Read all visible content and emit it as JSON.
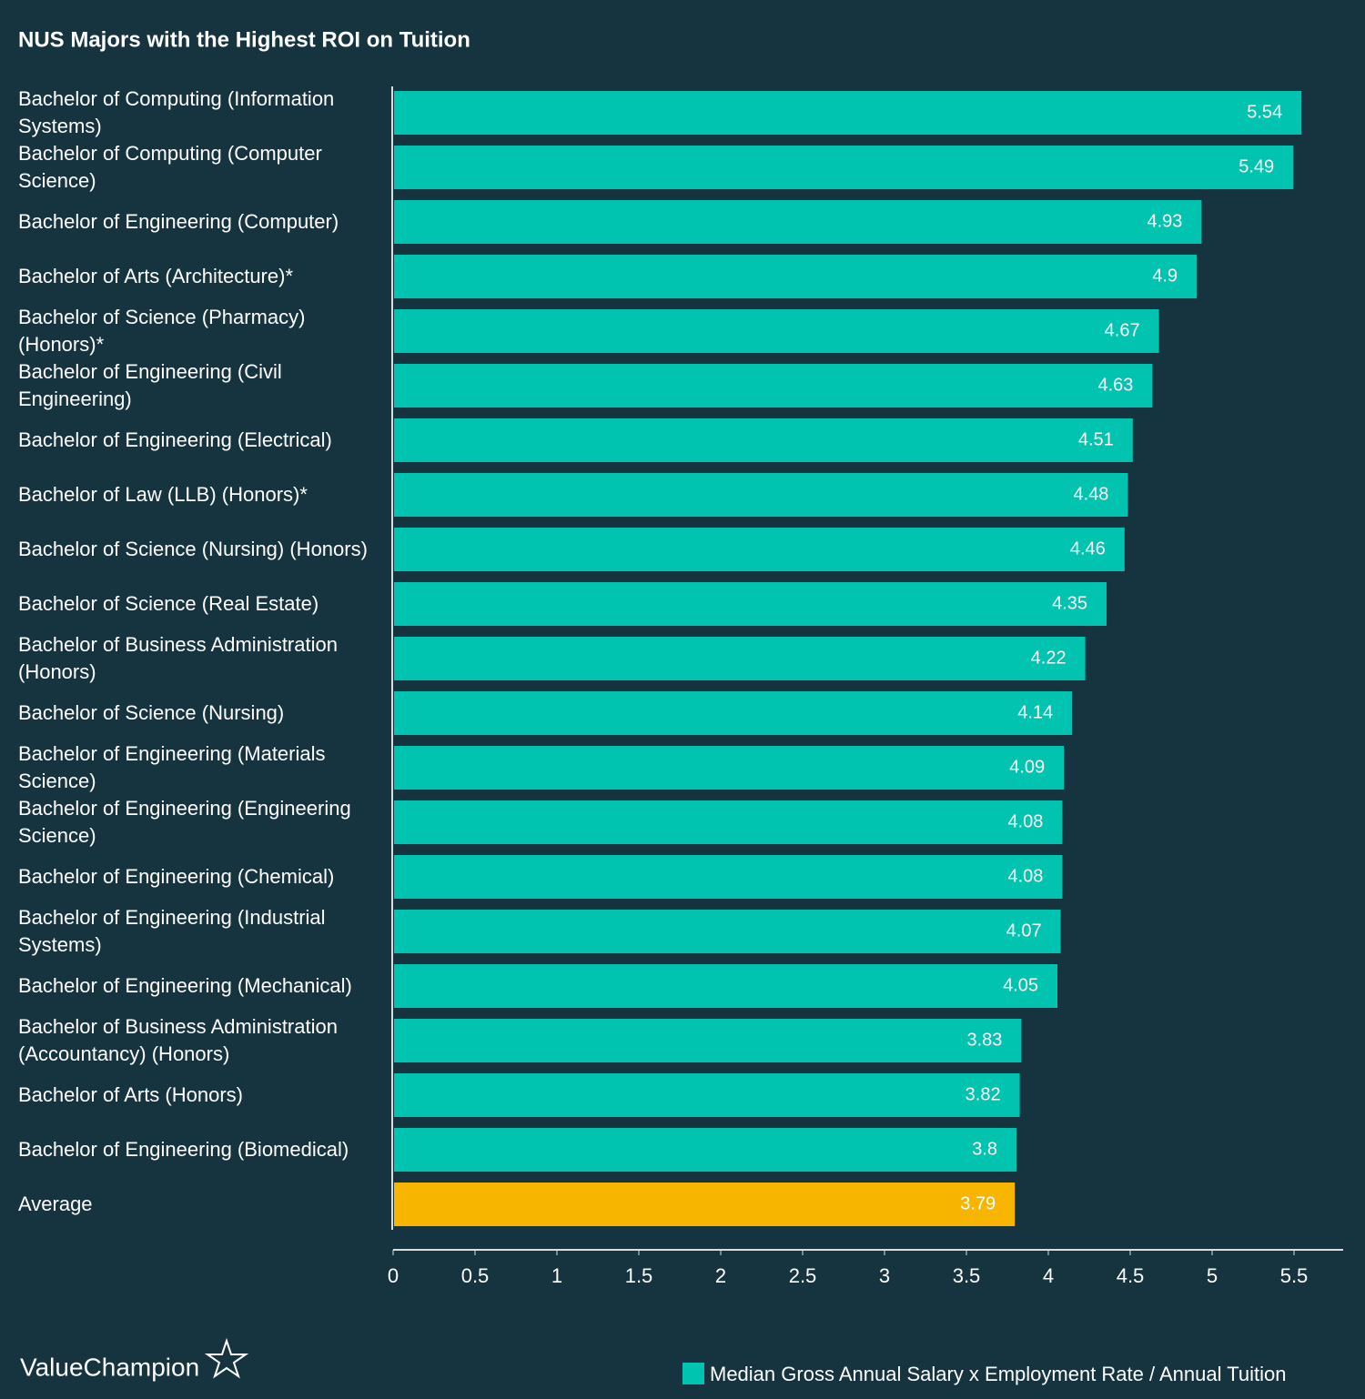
{
  "chart_data": {
    "type": "hbar",
    "title": "NUS Majors with the Highest ROI on Tuition",
    "categories": [
      "Bachelor of Computing (Information Systems)",
      "Bachelor of Computing (Computer Science)",
      "Bachelor of Engineering (Computer)",
      "Bachelor of Arts (Architecture)*",
      "Bachelor of Science (Pharmacy) (Honors)*",
      "Bachelor of Engineering (Civil Engineering)",
      "Bachelor of Engineering (Electrical)",
      "Bachelor of Law (LLB) (Honors)*",
      "Bachelor of Science (Nursing) (Honors)",
      "Bachelor of Science (Real Estate)",
      "Bachelor of Business Administration (Honors)",
      "Bachelor of Science (Nursing)",
      "Bachelor of Engineering (Materials Science)",
      "Bachelor of Engineering (Engineering Science)",
      "Bachelor of Engineering (Chemical)",
      "Bachelor of Engineering (Industrial Systems)",
      "Bachelor of Engineering (Mechanical)",
      "Bachelor of Business Administration (Accountancy) (Honors)",
      "Bachelor of Arts (Honors)",
      "Bachelor of Engineering (Biomedical)",
      "Average"
    ],
    "series": [
      {
        "name": "Median Gross Annual Salary x Employment Rate / Annual Tuition",
        "color": "#00c4b0",
        "values": [
          5.54,
          5.49,
          4.93,
          4.9,
          4.67,
          4.63,
          4.51,
          4.48,
          4.46,
          4.35,
          4.22,
          4.14,
          4.09,
          4.08,
          4.08,
          4.07,
          4.05,
          3.83,
          3.82,
          3.8,
          3.79
        ]
      }
    ],
    "bar_colors": [
      "#00c4b0",
      "#00c4b0",
      "#00c4b0",
      "#00c4b0",
      "#00c4b0",
      "#00c4b0",
      "#00c4b0",
      "#00c4b0",
      "#00c4b0",
      "#00c4b0",
      "#00c4b0",
      "#00c4b0",
      "#00c4b0",
      "#00c4b0",
      "#00c4b0",
      "#00c4b0",
      "#00c4b0",
      "#00c4b0",
      "#00c4b0",
      "#00c4b0",
      "#f7b500"
    ],
    "xlim": [
      0,
      5.8
    ],
    "xticks": [
      0,
      0.5,
      1,
      1.5,
      2,
      2.5,
      3,
      3.5,
      4,
      4.5,
      5,
      5.5
    ],
    "brand": "ValueChampion"
  }
}
